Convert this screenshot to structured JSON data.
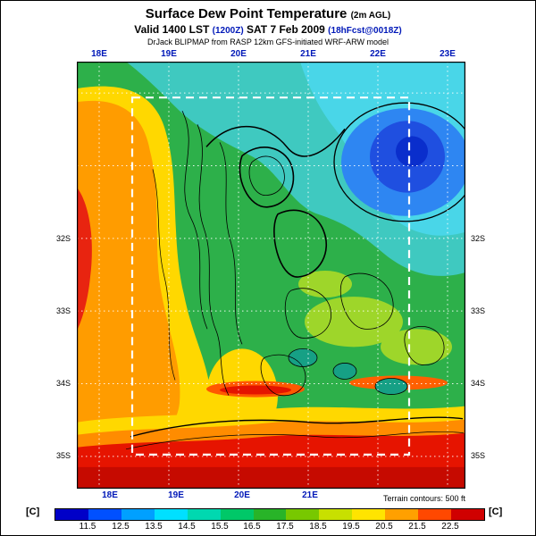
{
  "header": {
    "title": "Surface Dew Point Temperature",
    "title_suffix": "(2m AGL)",
    "valid_prefix": "Valid 1400 LST",
    "valid_z": "(1200Z)",
    "valid_date": "SAT 7 Feb 2009",
    "valid_fcst": "(18hFcst@0018Z)",
    "model_line": "DrJack BLIPMAP from RASP 12km GFS-initiated WRF-ARW model"
  },
  "map": {
    "top_axis": [
      "18E",
      "19E",
      "20E",
      "21E",
      "22E",
      "23E"
    ],
    "bottom_axis": [
      "18E",
      "19E",
      "20E",
      "21E"
    ],
    "left_axis": [
      "32S",
      "33S",
      "34S",
      "35S"
    ],
    "right_axis": [
      "32S",
      "33S",
      "34S",
      "35S"
    ],
    "terrain_note": "Terrain contours: 500 ft"
  },
  "colorbar": {
    "unit_left": "[C]",
    "unit_right": "[C]",
    "tick_labels": [
      "11.5",
      "12.5",
      "13.5",
      "14.5",
      "15.5",
      "16.5",
      "17.5",
      "18.5",
      "19.5",
      "20.5",
      "21.5",
      "22.5"
    ],
    "colors": [
      "#0000c8",
      "#0050ff",
      "#00a0ff",
      "#00e0ff",
      "#00d8b0",
      "#00c868",
      "#28b428",
      "#78c800",
      "#c8e000",
      "#ffe400",
      "#ffa000",
      "#ff4800",
      "#d00000"
    ]
  },
  "chart_data": {
    "type": "heatmap",
    "title": "Surface Dew Point Temperature (2m AGL)",
    "valid": "Valid 1400 LST (1200Z) SAT 7 Feb 2009 (18hFcst@0018Z)",
    "model": "DrJack BLIPMAP from RASP 12km GFS-initiated WRF-ARW model",
    "variable": "surface dew point temperature",
    "units": "C",
    "lon_ticks": [
      "18E",
      "19E",
      "20E",
      "21E",
      "22E",
      "23E"
    ],
    "lat_ticks": [
      "32S",
      "33S",
      "34S",
      "35S"
    ],
    "colorbar_levels_c": [
      11.5,
      12.5,
      13.5,
      14.5,
      15.5,
      16.5,
      17.5,
      18.5,
      19.5,
      20.5,
      21.5,
      22.5
    ],
    "colorbar_colors": [
      "#0000c8",
      "#0050ff",
      "#00a0ff",
      "#00e0ff",
      "#00d8b0",
      "#00c868",
      "#28b428",
      "#78c800",
      "#c8e000",
      "#ffe400",
      "#ffa000",
      "#ff4800",
      "#d00000"
    ],
    "legend_position": "bottom",
    "grid": true,
    "notes": "Terrain contours drawn in black every 500 ft; white dashed rectangle marks inner model domain",
    "regions": [
      {
        "area": "northeast interior (21E-23E, 30S-32S)",
        "approx_value_c": "11.5-14 coldest, dark blue core near 22E 31S"
      },
      {
        "area": "north-central band (19.5E-21.5E, 30S-31.5S)",
        "approx_value_c": "14-15.5 cyan/teal"
      },
      {
        "area": "western strip (18E-19E, 30.5S-34S)",
        "approx_value_c": "19-21 orange, 21-22 red along far west coast"
      },
      {
        "area": "central mountains (19.5E-21.5E, 32S-34.5S)",
        "approx_value_c": "15-18 green/yellow mosaic with teal pockets 15-16"
      },
      {
        "area": "southern coastal band (18E-23E, south of ~34.5S)",
        "approx_value_c": "21-22.5 red"
      }
    ]
  }
}
